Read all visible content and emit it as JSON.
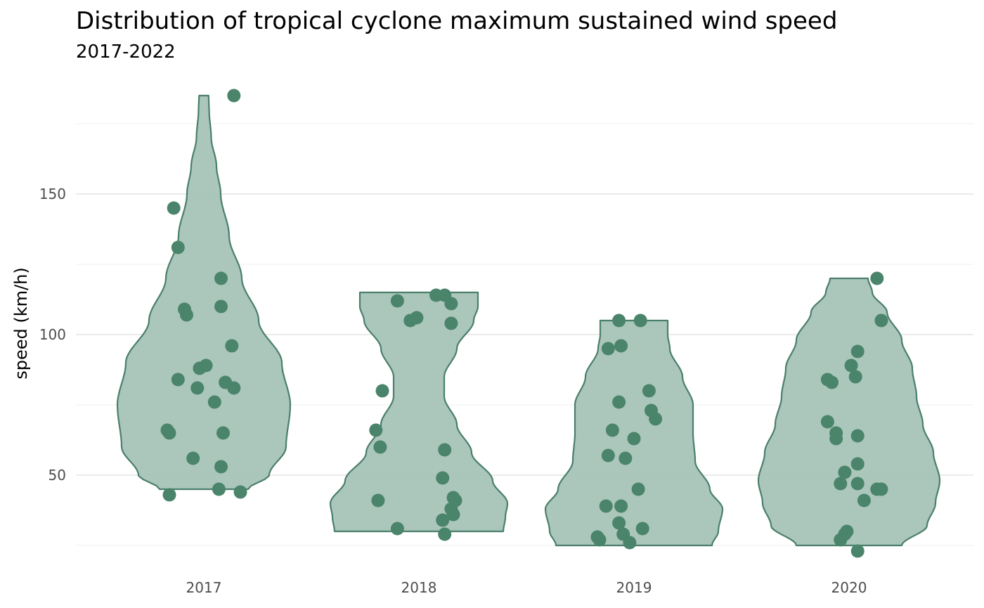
{
  "chart_data": {
    "type": "violin",
    "title": "Distribution of tropical cyclone maximum sustained wind speed",
    "subtitle": "2017-2022",
    "xlabel": "",
    "ylabel": "speed (km/h)",
    "ylim": [
      22,
      187
    ],
    "y_ticks": [
      50,
      100,
      150
    ],
    "y_tick_labels": [
      "50",
      "100",
      "150"
    ],
    "categories": [
      "2017",
      "2018",
      "2019",
      "2020"
    ],
    "grid": true,
    "legend": "none",
    "colors": {
      "violin_fill": "#a6c3b7",
      "violin_stroke": "#4a7f6b",
      "point": "#4a846b"
    },
    "violins": [
      {
        "category": "2017",
        "min": 45,
        "max": 185,
        "profile": [
          [
            45,
            0.42
          ],
          [
            50,
            0.62
          ],
          [
            60,
            0.78
          ],
          [
            75,
            0.82
          ],
          [
            90,
            0.74
          ],
          [
            105,
            0.52
          ],
          [
            120,
            0.36
          ],
          [
            135,
            0.24
          ],
          [
            150,
            0.16
          ],
          [
            160,
            0.12
          ],
          [
            170,
            0.07
          ],
          [
            180,
            0.05
          ],
          [
            185,
            0.045
          ]
        ],
        "points": [
          [
            -0.16,
            43
          ],
          [
            -0.17,
            66
          ],
          [
            -0.16,
            65
          ],
          [
            -0.05,
            56
          ],
          [
            -0.12,
            131
          ],
          [
            -0.14,
            145
          ],
          [
            -0.09,
            109
          ],
          [
            -0.12,
            84
          ],
          [
            -0.02,
            88
          ],
          [
            -0.03,
            81
          ],
          [
            0.01,
            89
          ],
          [
            0.05,
            76
          ],
          [
            0.07,
            45
          ],
          [
            0.08,
            53
          ],
          [
            0.09,
            65
          ],
          [
            0.08,
            120
          ],
          [
            0.08,
            110
          ],
          [
            0.13,
            96
          ],
          [
            0.14,
            81
          ],
          [
            0.14,
            185
          ],
          [
            0.17,
            44
          ],
          [
            -0.08,
            107
          ],
          [
            0.1,
            83
          ]
        ]
      },
      {
        "category": "2018",
        "min": 30,
        "max": 115,
        "profile": [
          [
            30,
            0.8
          ],
          [
            35,
            0.82
          ],
          [
            40,
            0.84
          ],
          [
            48,
            0.7
          ],
          [
            58,
            0.5
          ],
          [
            68,
            0.36
          ],
          [
            78,
            0.24
          ],
          [
            85,
            0.24
          ],
          [
            95,
            0.36
          ],
          [
            105,
            0.52
          ],
          [
            110,
            0.56
          ],
          [
            115,
            0.56
          ]
        ],
        "points": [
          [
            -0.1,
            31
          ],
          [
            -0.19,
            41
          ],
          [
            -0.2,
            66
          ],
          [
            -0.18,
            60
          ],
          [
            -0.17,
            80
          ],
          [
            -0.1,
            112
          ],
          [
            -0.04,
            105
          ],
          [
            -0.01,
            106
          ],
          [
            0.08,
            114
          ],
          [
            0.12,
            114
          ],
          [
            0.15,
            111
          ],
          [
            0.15,
            104
          ],
          [
            0.12,
            59
          ],
          [
            0.11,
            49
          ],
          [
            0.11,
            34
          ],
          [
            0.12,
            29
          ],
          [
            0.15,
            38
          ],
          [
            0.16,
            36
          ],
          [
            0.17,
            41
          ],
          [
            0.16,
            42
          ]
        ]
      },
      {
        "category": "2019",
        "min": 25,
        "max": 105,
        "profile": [
          [
            25,
            0.74
          ],
          [
            30,
            0.8
          ],
          [
            38,
            0.84
          ],
          [
            45,
            0.72
          ],
          [
            55,
            0.58
          ],
          [
            65,
            0.56
          ],
          [
            75,
            0.56
          ],
          [
            85,
            0.46
          ],
          [
            95,
            0.34
          ],
          [
            100,
            0.32
          ],
          [
            105,
            0.32
          ]
        ],
        "points": [
          [
            -0.17,
            28
          ],
          [
            -0.16,
            27
          ],
          [
            -0.13,
            39
          ],
          [
            -0.12,
            57
          ],
          [
            -0.1,
            66
          ],
          [
            -0.12,
            95
          ],
          [
            -0.07,
            105
          ],
          [
            -0.06,
            96
          ],
          [
            -0.07,
            76
          ],
          [
            -0.06,
            39
          ],
          [
            -0.07,
            33
          ],
          [
            -0.05,
            29
          ],
          [
            -0.04,
            56
          ],
          [
            0,
            63
          ],
          [
            -0.02,
            26
          ],
          [
            0.03,
            105
          ],
          [
            0.02,
            45
          ],
          [
            0.04,
            31
          ],
          [
            0.07,
            80
          ],
          [
            0.08,
            73
          ],
          [
            0.1,
            70
          ]
        ]
      },
      {
        "category": "2020",
        "min": 25,
        "max": 120,
        "profile": [
          [
            25,
            0.5
          ],
          [
            32,
            0.74
          ],
          [
            40,
            0.82
          ],
          [
            48,
            0.86
          ],
          [
            58,
            0.8
          ],
          [
            68,
            0.7
          ],
          [
            78,
            0.64
          ],
          [
            88,
            0.6
          ],
          [
            98,
            0.5
          ],
          [
            108,
            0.36
          ],
          [
            115,
            0.22
          ],
          [
            120,
            0.18
          ]
        ],
        "points": [
          [
            -0.1,
            69
          ],
          [
            -0.1,
            84
          ],
          [
            -0.08,
            83
          ],
          [
            -0.06,
            65
          ],
          [
            -0.06,
            63
          ],
          [
            -0.04,
            47
          ],
          [
            -0.02,
            51
          ],
          [
            -0.02,
            29
          ],
          [
            -0.04,
            27
          ],
          [
            -0.01,
            30
          ],
          [
            0.01,
            89
          ],
          [
            0.03,
            85
          ],
          [
            0.04,
            94
          ],
          [
            0.04,
            64
          ],
          [
            0.04,
            54
          ],
          [
            0.04,
            47
          ],
          [
            0.04,
            23
          ],
          [
            0.07,
            41
          ],
          [
            0.13,
            45
          ],
          [
            0.15,
            45
          ],
          [
            0.13,
            120
          ],
          [
            0.15,
            105
          ]
        ]
      }
    ]
  }
}
